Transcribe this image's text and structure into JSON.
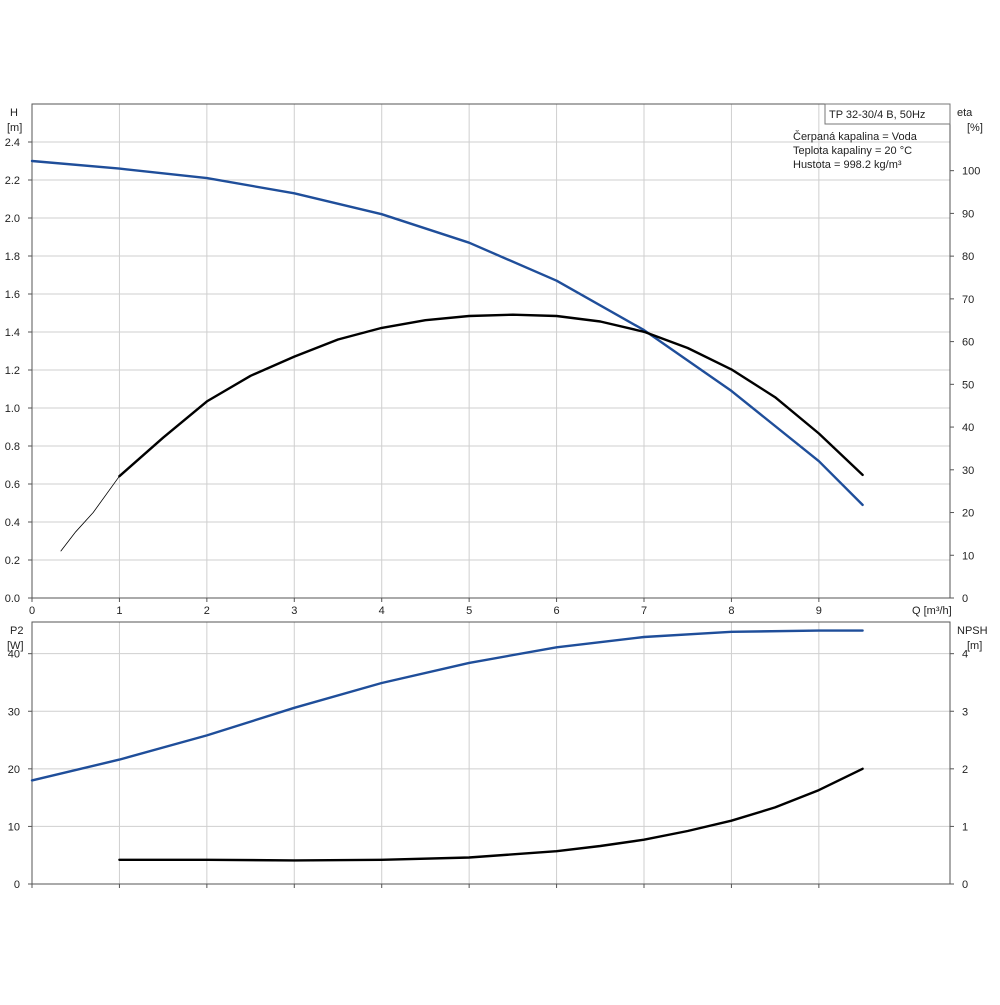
{
  "colors": {
    "blue": "#1f4e9a",
    "black": "#000000",
    "grid": "#cfcfcf",
    "frame": "#555555"
  },
  "chart_data": [
    {
      "type": "line",
      "name": "head-efficiency",
      "title": "TP 32-30/4 B, 50Hz",
      "info_lines": [
        "Čerpaná kapalina = Voda",
        "Teplota kapaliny = 20 °C",
        "Hustota = 998.2 kg/m³"
      ],
      "xlabel": "Q [m³/h]",
      "ylabel_left": [
        "H",
        "[m]"
      ],
      "ylabel_right": [
        "eta",
        "[%]"
      ],
      "xlim": [
        0,
        10.5
      ],
      "ylim_left": [
        0,
        2.6
      ],
      "ylim_right": [
        0,
        115.6
      ],
      "x_ticks": [
        0,
        1,
        2,
        3,
        4,
        5,
        6,
        7,
        8,
        9
      ],
      "x_tick_labels": [
        "0",
        "1",
        "2",
        "3",
        "4",
        "5",
        "6",
        "7",
        "8",
        "9"
      ],
      "y_left_ticks": [
        0,
        0.2,
        0.4,
        0.6,
        0.8,
        1.0,
        1.2,
        1.4,
        1.6,
        1.8,
        2.0,
        2.2,
        2.4
      ],
      "y_left_tick_labels": [
        "0.0",
        "0.2",
        "0.4",
        "0.6",
        "0.8",
        "1.0",
        "1.2",
        "1.4",
        "1.6",
        "1.8",
        "2.0",
        "2.2",
        "2.4"
      ],
      "y_right_ticks": [
        0,
        10,
        20,
        30,
        40,
        50,
        60,
        70,
        80,
        90,
        100
      ],
      "y_right_tick_labels": [
        "0",
        "10",
        "20",
        "30",
        "40",
        "50",
        "60",
        "70",
        "80",
        "90",
        "100"
      ],
      "series": [
        {
          "axis": "left",
          "color": "#1f4e9a",
          "width": 2.4,
          "x": [
            0,
            1,
            2,
            3,
            4,
            5,
            6,
            7,
            8,
            9,
            9.5
          ],
          "y": [
            2.3,
            2.26,
            2.21,
            2.13,
            2.02,
            1.87,
            1.67,
            1.41,
            1.09,
            0.72,
            0.49
          ]
        },
        {
          "axis": "right",
          "color": "#000000",
          "width": 0.8,
          "x": [
            0.33,
            0.5,
            0.7,
            1.0
          ],
          "y": [
            11,
            15.5,
            20,
            28.5
          ]
        },
        {
          "axis": "right",
          "color": "#000000",
          "width": 2.4,
          "x": [
            1,
            1.5,
            2,
            2.5,
            3,
            3.5,
            4,
            4.5,
            5,
            5.5,
            6,
            6.5,
            7,
            7.5,
            8,
            8.5,
            9,
            9.5
          ],
          "y": [
            28.5,
            37.5,
            46,
            52,
            56.5,
            60.5,
            63.2,
            65,
            66,
            66.3,
            66,
            64.7,
            62.3,
            58.5,
            53.5,
            47,
            38.5,
            28.8
          ]
        }
      ]
    },
    {
      "type": "line",
      "name": "power-npsh",
      "xlim": [
        0,
        10.5
      ],
      "ylim_left": [
        0,
        45.5
      ],
      "ylim_right": [
        0,
        4.55
      ],
      "ylabel_left": [
        "P2",
        "[W]"
      ],
      "ylabel_right": [
        "NPSH",
        "[m]"
      ],
      "x_ticks": [
        0,
        1,
        2,
        3,
        4,
        5,
        6,
        7,
        8,
        9
      ],
      "y_left_ticks": [
        0,
        10,
        20,
        30,
        40
      ],
      "y_left_tick_labels": [
        "0",
        "10",
        "20",
        "30",
        "40"
      ],
      "y_right_ticks": [
        0,
        1,
        2,
        3,
        4
      ],
      "y_right_tick_labels": [
        "0",
        "1",
        "2",
        "3",
        "4"
      ],
      "series": [
        {
          "axis": "left",
          "color": "#1f4e9a",
          "width": 2.4,
          "x": [
            0,
            1,
            2,
            3,
            4,
            5,
            6,
            7,
            8,
            9,
            9.5
          ],
          "y": [
            18,
            21.6,
            25.8,
            30.6,
            34.9,
            38.4,
            41.1,
            42.9,
            43.8,
            44.0,
            44.0
          ]
        },
        {
          "axis": "right",
          "color": "#000000",
          "width": 2.4,
          "x": [
            1,
            2,
            3,
            4,
            5,
            6,
            6.5,
            7,
            7.5,
            8,
            8.5,
            9,
            9.5
          ],
          "y": [
            0.42,
            0.42,
            0.41,
            0.42,
            0.46,
            0.57,
            0.66,
            0.77,
            0.92,
            1.1,
            1.33,
            1.63,
            2.0
          ]
        }
      ]
    }
  ]
}
